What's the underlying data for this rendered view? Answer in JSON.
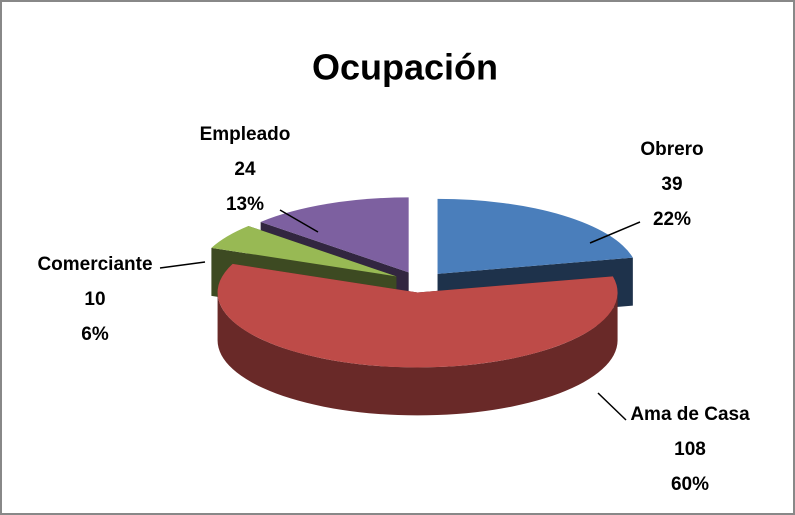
{
  "chart_data": {
    "type": "pie3d",
    "title": "Ocupación",
    "categories": [
      "Obrero",
      "Ama de Casa",
      "Comerciante",
      "Empleado"
    ],
    "values": [
      39,
      108,
      10,
      24
    ],
    "percent_values": [
      22,
      60,
      6,
      13
    ],
    "percent_labels": [
      "22%",
      "60%",
      "6%",
      "13%"
    ],
    "colors": [
      "#4a7ebb",
      "#be4b48",
      "#98b954",
      "#7d60a0"
    ]
  }
}
